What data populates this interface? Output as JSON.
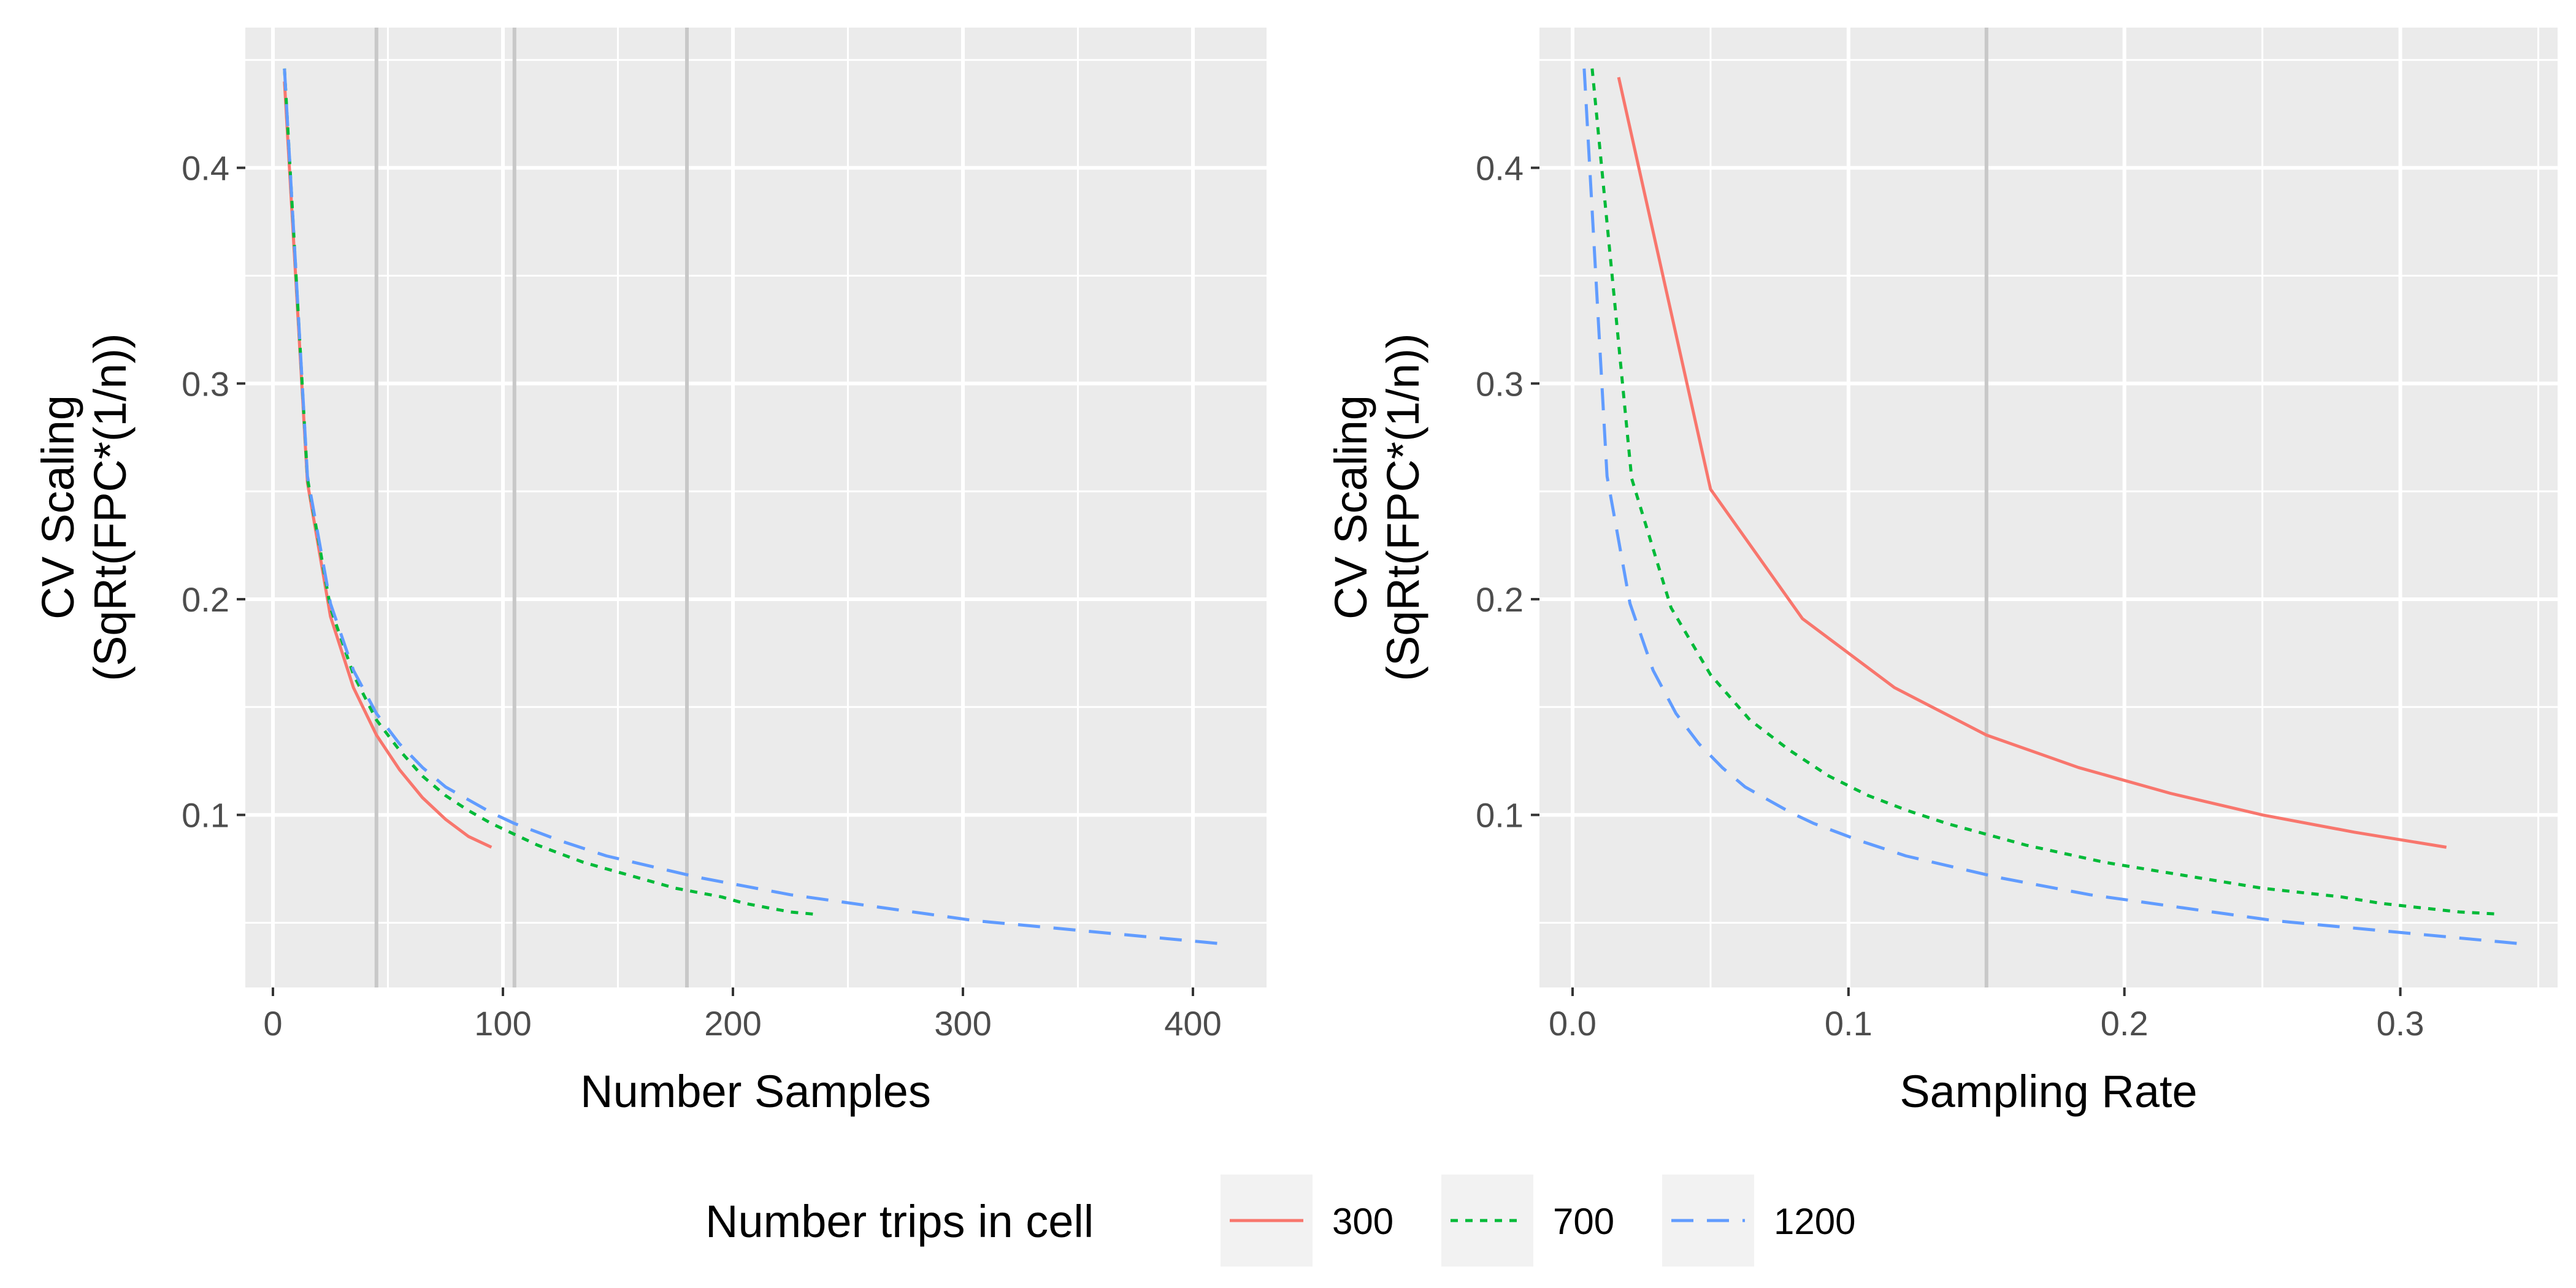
{
  "chart_data": [
    {
      "type": "line",
      "xlabel": "Number Samples",
      "ylabel_line1": "CV Scaling",
      "ylabel_line2": "(SqRt(FPC*(1/n))",
      "xlim": [
        -12,
        432
      ],
      "ylim": [
        0.02,
        0.465
      ],
      "x_ticks": [
        0,
        100,
        200,
        300,
        400
      ],
      "x_tick_labels": [
        "0",
        "100",
        "200",
        "300",
        "400"
      ],
      "y_ticks": [
        0.1,
        0.2,
        0.3,
        0.4
      ],
      "y_tick_labels": [
        "0.1",
        "0.2",
        "0.3",
        "0.4"
      ],
      "grid": true,
      "vlines": [
        45,
        105,
        180
      ],
      "series": [
        {
          "name": "300",
          "x": [
            5,
            15,
            25,
            35,
            45,
            55,
            65,
            75,
            85,
            95
          ],
          "y": [
            0.44,
            0.254,
            0.192,
            0.159,
            0.137,
            0.121,
            0.108,
            0.098,
            0.09,
            0.085
          ]
        },
        {
          "name": "700",
          "x": [
            5,
            15,
            25,
            35,
            45,
            55,
            65,
            75,
            85,
            95,
            105,
            115,
            125,
            135,
            145,
            155,
            165,
            175,
            185,
            195,
            205,
            215,
            225,
            235
          ],
          "y": [
            0.446,
            0.256,
            0.196,
            0.165,
            0.144,
            0.13,
            0.118,
            0.109,
            0.102,
            0.096,
            0.091,
            0.086,
            0.082,
            0.078,
            0.075,
            0.072,
            0.069,
            0.066,
            0.064,
            0.062,
            0.059,
            0.057,
            0.055,
            0.054
          ]
        },
        {
          "name": "1200",
          "x": [
            5,
            15,
            25,
            35,
            45,
            55,
            65,
            75,
            85,
            95,
            105,
            125,
            145,
            165,
            185,
            205,
            225,
            245,
            265,
            285,
            305,
            325,
            345,
            365,
            385,
            405,
            415
          ],
          "y": [
            0.446,
            0.257,
            0.198,
            0.167,
            0.147,
            0.133,
            0.122,
            0.113,
            0.107,
            0.101,
            0.096,
            0.088,
            0.081,
            0.076,
            0.071,
            0.067,
            0.063,
            0.06,
            0.057,
            0.054,
            0.051,
            0.049,
            0.047,
            0.045,
            0.043,
            0.041,
            0.04
          ]
        }
      ]
    },
    {
      "type": "line",
      "xlabel": "Sampling Rate",
      "ylabel_line1": "CV Scaling",
      "ylabel_line2": "(SqRt(FPC*(1/n))",
      "xlim": [
        -0.012,
        0.357
      ],
      "ylim": [
        0.02,
        0.465
      ],
      "x_ticks": [
        0.0,
        0.1,
        0.2,
        0.3
      ],
      "x_tick_labels": [
        "0.0",
        "0.1",
        "0.2",
        "0.3"
      ],
      "y_ticks": [
        0.1,
        0.2,
        0.3,
        0.4
      ],
      "y_tick_labels": [
        "0.1",
        "0.2",
        "0.3",
        "0.4"
      ],
      "grid": true,
      "vlines": [
        0.15
      ],
      "series": [
        {
          "name": "300",
          "x": [
            0.0167,
            0.05,
            0.0833,
            0.1167,
            0.15,
            0.1833,
            0.2167,
            0.25,
            0.2833,
            0.3167
          ],
          "y": [
            0.442,
            0.251,
            0.191,
            0.159,
            0.137,
            0.122,
            0.11,
            0.1,
            0.092,
            0.085
          ]
        },
        {
          "name": "700",
          "x": [
            0.0071,
            0.0214,
            0.0357,
            0.05,
            0.0643,
            0.0786,
            0.0929,
            0.1071,
            0.1214,
            0.1357,
            0.15,
            0.1643,
            0.1786,
            0.1929,
            0.2071,
            0.2214,
            0.2357,
            0.25,
            0.2643,
            0.2786,
            0.2929,
            0.3071,
            0.3214,
            0.3357
          ],
          "y": [
            0.446,
            0.256,
            0.196,
            0.165,
            0.144,
            0.13,
            0.118,
            0.109,
            0.102,
            0.096,
            0.091,
            0.086,
            0.082,
            0.078,
            0.075,
            0.072,
            0.069,
            0.066,
            0.064,
            0.062,
            0.059,
            0.057,
            0.055,
            0.054
          ]
        },
        {
          "name": "1200",
          "x": [
            0.0042,
            0.0125,
            0.0208,
            0.0292,
            0.0375,
            0.0458,
            0.0542,
            0.0625,
            0.0708,
            0.0792,
            0.0875,
            0.1042,
            0.1208,
            0.1375,
            0.1542,
            0.1708,
            0.1875,
            0.2042,
            0.2208,
            0.2375,
            0.2542,
            0.2708,
            0.2875,
            0.3042,
            0.3208,
            0.3375,
            0.3458
          ],
          "y": [
            0.446,
            0.257,
            0.198,
            0.167,
            0.147,
            0.133,
            0.122,
            0.113,
            0.107,
            0.101,
            0.096,
            0.088,
            0.081,
            0.076,
            0.071,
            0.067,
            0.063,
            0.06,
            0.057,
            0.054,
            0.051,
            0.049,
            0.047,
            0.045,
            0.043,
            0.041,
            0.04
          ]
        }
      ]
    }
  ],
  "legend": {
    "title": "Number trips in cell",
    "placement": "bottom",
    "items": [
      {
        "label": "300",
        "color": "#F8766D",
        "dash": "solid"
      },
      {
        "label": "700",
        "color": "#00BA38",
        "dash": "dotted"
      },
      {
        "label": "1200",
        "color": "#619CFF",
        "dash": "dashed"
      }
    ]
  },
  "colors": {
    "panel_background": "#EBEBEB",
    "grid_major": "#FFFFFF",
    "vline": "#C8C8C8"
  }
}
